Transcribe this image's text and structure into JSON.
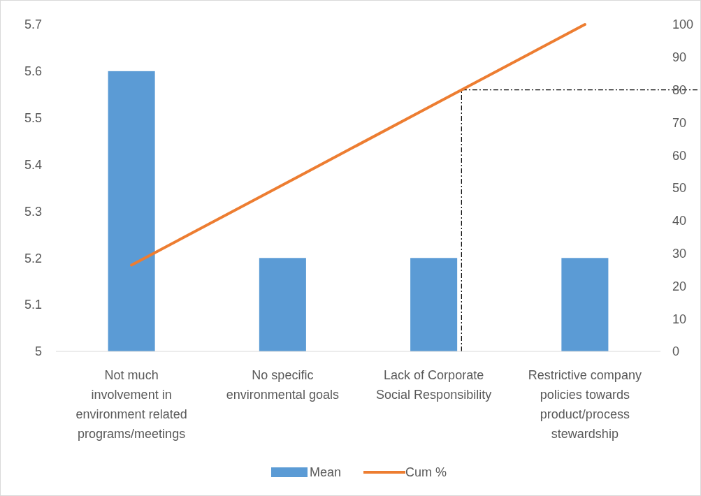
{
  "chart_data": {
    "type": "bar",
    "categories": [
      "Not much involvement in environment related programs/meetings",
      "No specific environmental goals",
      "Lack of Corporate Social Responsibility",
      "Restrictive company policies towards product/process stewardship"
    ],
    "series": [
      {
        "name": "Mean",
        "color": "#5b9bd5",
        "values": [
          5.6,
          5.2,
          5.2,
          5.2
        ]
      },
      {
        "name": "Cum %",
        "type": "line",
        "axis": "y2",
        "color": "#ed7d31",
        "values": [
          26.4,
          50.9,
          75.5,
          100
        ]
      }
    ],
    "ylim": [
      5,
      5.7
    ],
    "yticks": [
      5,
      5.1,
      5.2,
      5.3,
      5.4,
      5.5,
      5.6,
      5.7
    ],
    "y2lim": [
      0,
      100
    ],
    "y2ticks": [
      0,
      10,
      20,
      30,
      40,
      50,
      60,
      70,
      80,
      90,
      100
    ],
    "ref_lines": [
      {
        "axis": "y2",
        "value": 80,
        "color": "#000000",
        "line_style": "dashed"
      }
    ],
    "legend": "bottom",
    "grid": false,
    "marker": "none"
  }
}
